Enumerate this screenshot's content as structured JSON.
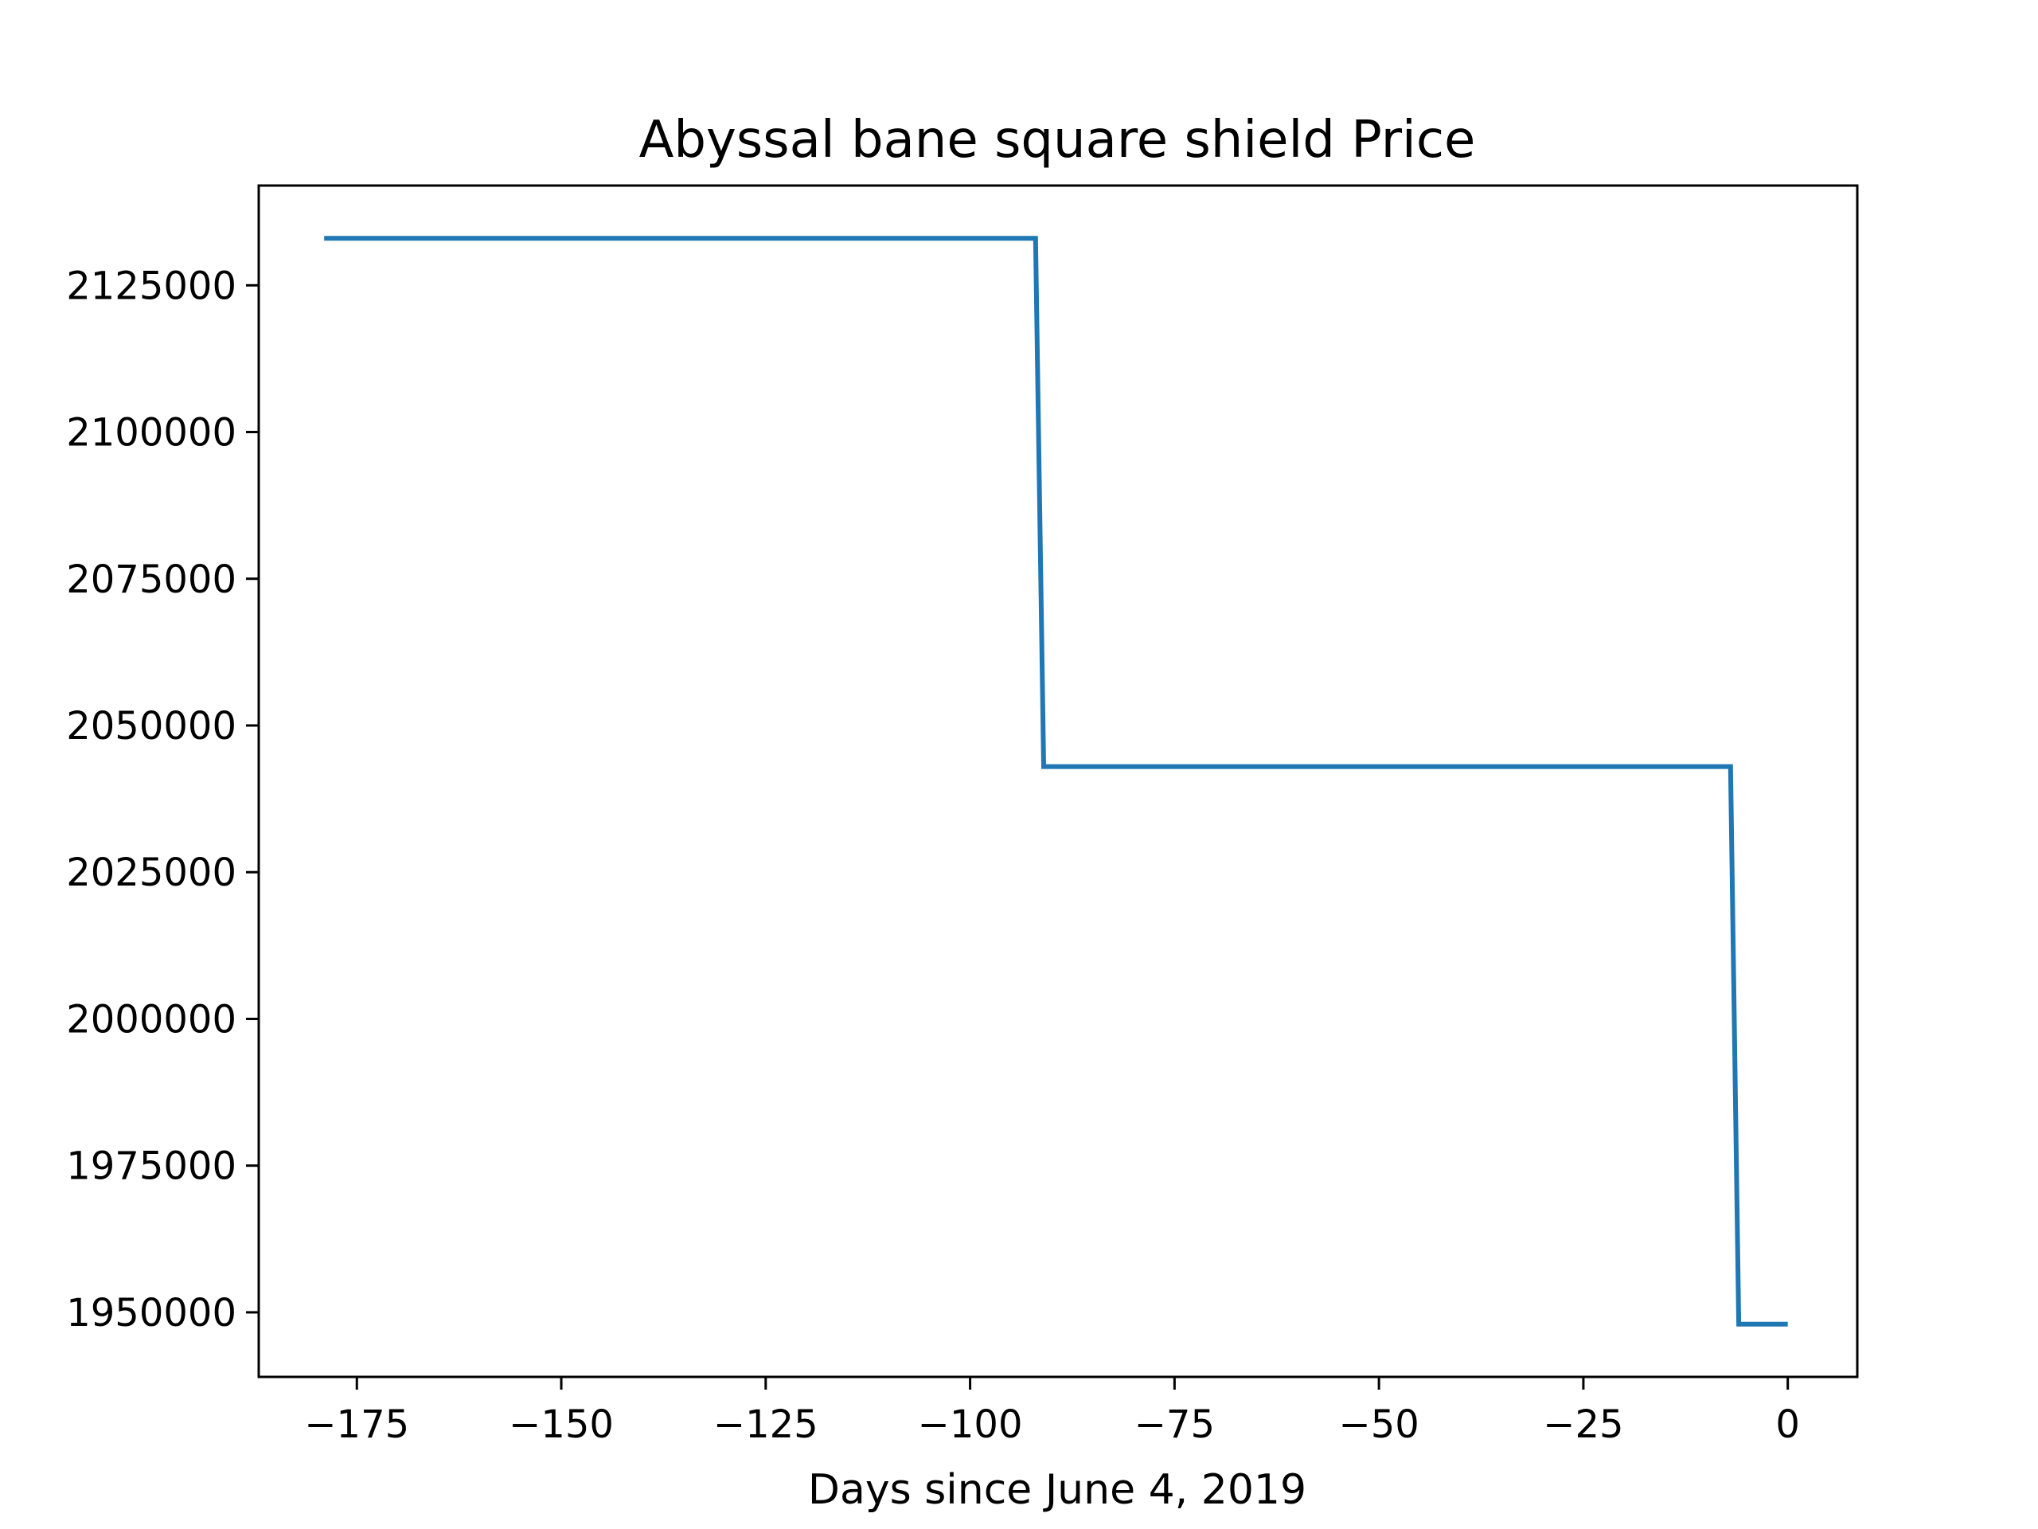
{
  "chart_data": {
    "type": "line",
    "title": "Abyssal bane square shield Price",
    "xlabel": "Days since June 4, 2019",
    "ylabel": "",
    "xlim": [
      -187,
      8.5
    ],
    "ylim": [
      1939000,
      2142000
    ],
    "x_ticks": [
      -175,
      -150,
      -125,
      -100,
      -75,
      -50,
      -25,
      0
    ],
    "x_tick_labels": [
      "−175",
      "−150",
      "−125",
      "−100",
      "−75",
      "−50",
      "−25",
      "0"
    ],
    "y_ticks": [
      1950000,
      1975000,
      2000000,
      2025000,
      2050000,
      2075000,
      2100000,
      2125000
    ],
    "y_tick_labels": [
      "1950000",
      "1975000",
      "2000000",
      "2025000",
      "2050000",
      "2075000",
      "2100000",
      "2125000"
    ],
    "grid": false,
    "line_color": "#1f77b4",
    "series": [
      {
        "x": [
          -179,
          -92,
          -91,
          -7,
          -6,
          0
        ],
        "y": [
          2133000,
          2133000,
          2043000,
          2043000,
          1948000,
          1948000
        ]
      }
    ]
  }
}
